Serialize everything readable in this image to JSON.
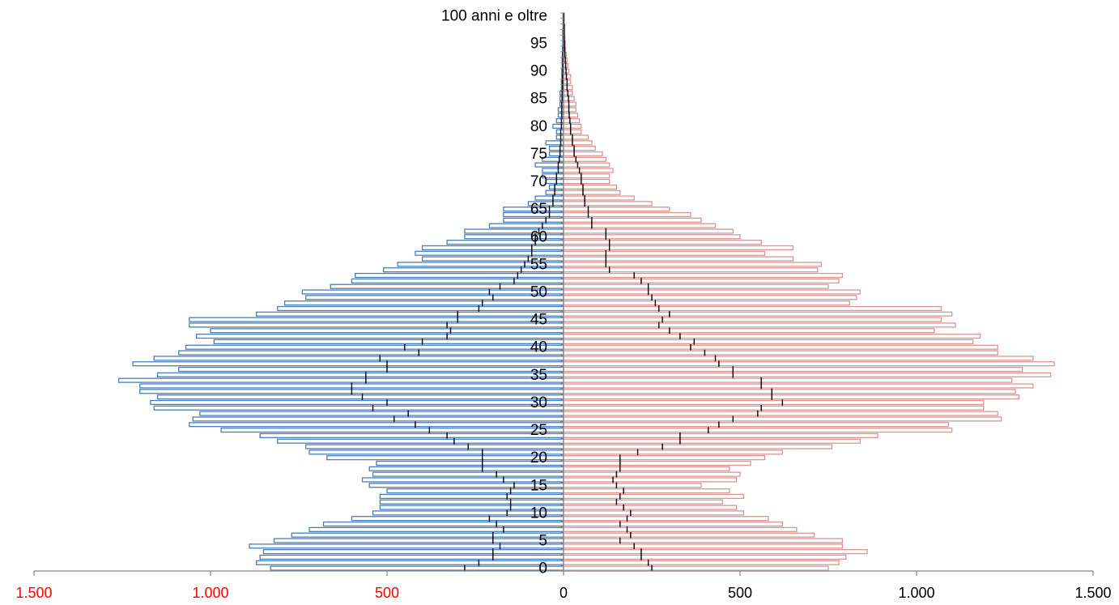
{
  "chart_data": {
    "type": "bar",
    "orientation": "horizontal",
    "layout": "population-pyramid",
    "categories": [
      "0",
      "1",
      "2",
      "3",
      "4",
      "5",
      "6",
      "7",
      "8",
      "9",
      "10",
      "11",
      "12",
      "13",
      "14",
      "15",
      "16",
      "17",
      "18",
      "19",
      "20",
      "21",
      "22",
      "23",
      "24",
      "25",
      "26",
      "27",
      "28",
      "29",
      "30",
      "31",
      "32",
      "33",
      "34",
      "35",
      "36",
      "37",
      "38",
      "39",
      "40",
      "41",
      "42",
      "43",
      "44",
      "45",
      "46",
      "47",
      "48",
      "49",
      "50",
      "51",
      "52",
      "53",
      "54",
      "55",
      "56",
      "57",
      "58",
      "59",
      "60",
      "61",
      "62",
      "63",
      "64",
      "65",
      "66",
      "67",
      "68",
      "69",
      "70",
      "71",
      "72",
      "73",
      "74",
      "75",
      "76",
      "77",
      "78",
      "79",
      "80",
      "81",
      "82",
      "83",
      "84",
      "85",
      "86",
      "87",
      "88",
      "89",
      "90",
      "91",
      "92",
      "93",
      "94",
      "95",
      "96",
      "97",
      "98",
      "99",
      "100 anni e oltre"
    ],
    "category_tick_labels": [
      "0",
      "5",
      "10",
      "15",
      "20",
      "25",
      "30",
      "35",
      "40",
      "45",
      "50",
      "55",
      "60",
      "65",
      "70",
      "75",
      "80",
      "85",
      "90",
      "95",
      "100 anni e oltre"
    ],
    "x_tick_labels": [
      "1.500",
      "1.000",
      "500",
      "0",
      "500",
      "1.000",
      "1.500"
    ],
    "x_tick_values": [
      -1500,
      -1000,
      -500,
      0,
      500,
      1000,
      1500
    ],
    "xlim": [
      -1500,
      1500
    ],
    "colors": {
      "left": "#4a7ebb",
      "right": "#d99694",
      "marker": "#000000",
      "axis": "#868686",
      "left_tick_text": "#ff0000",
      "right_tick_text": "#000000"
    },
    "series": [
      {
        "side": "left",
        "values": [
          830,
          870,
          860,
          850,
          890,
          820,
          770,
          720,
          680,
          600,
          540,
          520,
          520,
          520,
          500,
          550,
          570,
          540,
          550,
          530,
          670,
          720,
          730,
          810,
          860,
          970,
          1060,
          1050,
          1030,
          1160,
          1170,
          1150,
          1200,
          1200,
          1260,
          1150,
          1090,
          1220,
          1160,
          1090,
          1070,
          990,
          1040,
          1000,
          1060,
          1060,
          870,
          810,
          790,
          730,
          740,
          660,
          600,
          590,
          510,
          470,
          400,
          420,
          400,
          330,
          280,
          280,
          210,
          170,
          170,
          170,
          100,
          80,
          50,
          40,
          50,
          60,
          60,
          80,
          60,
          40,
          40,
          50,
          20,
          20,
          30,
          20,
          15,
          15,
          10,
          10,
          10,
          6,
          6,
          5,
          5,
          4,
          4,
          3,
          3,
          2,
          2,
          2,
          1,
          1,
          1
        ]
      },
      {
        "side": "right",
        "values": [
          750,
          780,
          800,
          860,
          790,
          790,
          710,
          660,
          620,
          580,
          510,
          490,
          450,
          510,
          470,
          390,
          490,
          500,
          470,
          530,
          570,
          620,
          760,
          840,
          890,
          1100,
          1090,
          1240,
          1230,
          1190,
          1190,
          1290,
          1280,
          1330,
          1270,
          1380,
          1300,
          1390,
          1330,
          1230,
          1230,
          1160,
          1180,
          1050,
          1110,
          1070,
          1100,
          1070,
          810,
          830,
          840,
          750,
          780,
          790,
          720,
          730,
          650,
          570,
          650,
          560,
          500,
          480,
          430,
          390,
          360,
          300,
          250,
          200,
          160,
          150,
          130,
          130,
          140,
          130,
          120,
          110,
          90,
          80,
          70,
          50,
          50,
          45,
          40,
          35,
          35,
          30,
          25,
          25,
          20,
          20,
          15,
          12,
          10,
          8,
          6,
          5,
          4,
          3,
          3,
          2,
          2
        ]
      },
      {
        "side": "left-marker",
        "values": [
          280,
          240,
          200,
          200,
          180,
          200,
          200,
          170,
          190,
          210,
          160,
          150,
          150,
          160,
          150,
          140,
          170,
          190,
          230,
          230,
          230,
          230,
          270,
          310,
          330,
          380,
          420,
          480,
          440,
          540,
          500,
          570,
          600,
          600,
          560,
          560,
          500,
          500,
          520,
          410,
          450,
          400,
          330,
          320,
          330,
          300,
          300,
          240,
          230,
          200,
          210,
          180,
          140,
          130,
          120,
          110,
          100,
          90,
          90,
          80,
          80,
          70,
          60,
          50,
          40,
          40,
          30,
          30,
          25,
          25,
          20,
          20,
          15,
          15,
          12,
          10,
          10,
          8,
          8,
          8,
          6,
          6,
          5,
          5,
          5,
          4,
          4,
          3,
          3,
          3,
          2,
          2,
          2,
          2,
          1,
          1,
          1,
          1,
          1,
          1,
          1
        ]
      },
      {
        "side": "right-marker",
        "values": [
          250,
          240,
          220,
          220,
          200,
          160,
          190,
          180,
          160,
          180,
          190,
          170,
          150,
          160,
          170,
          150,
          140,
          150,
          160,
          160,
          160,
          210,
          280,
          330,
          330,
          410,
          440,
          480,
          550,
          560,
          620,
          590,
          590,
          560,
          560,
          480,
          480,
          440,
          430,
          400,
          360,
          370,
          330,
          300,
          270,
          280,
          300,
          270,
          260,
          250,
          240,
          240,
          220,
          200,
          130,
          120,
          120,
          120,
          130,
          130,
          120,
          120,
          80,
          80,
          70,
          70,
          60,
          60,
          55,
          55,
          50,
          50,
          45,
          40,
          35,
          30,
          30,
          25,
          25,
          20,
          20,
          18,
          16,
          15,
          15,
          14,
          12,
          10,
          10,
          8,
          7,
          6,
          5,
          4,
          3,
          3,
          2,
          2,
          2,
          1,
          1
        ]
      }
    ]
  }
}
